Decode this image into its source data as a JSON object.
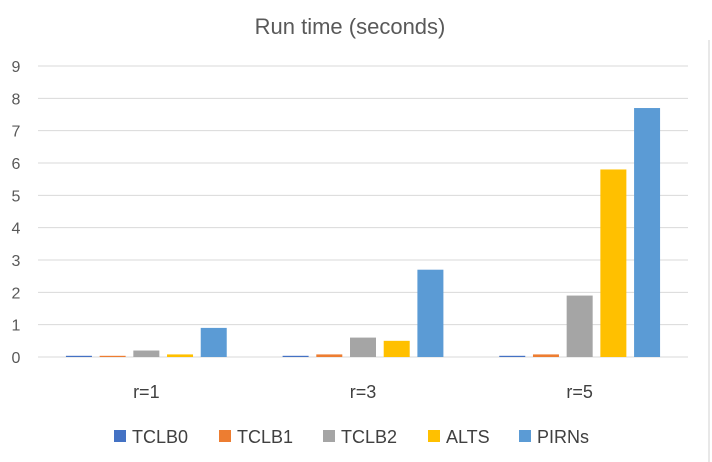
{
  "chart_data": {
    "type": "bar",
    "title": "Run time (seconds)",
    "xlabel": "",
    "ylabel": "",
    "categories": [
      "r=1",
      "r=3",
      "r=5"
    ],
    "ylim": [
      0,
      9
    ],
    "yticks": [
      "0",
      "1",
      "2",
      "3",
      "4",
      "5",
      "6",
      "7",
      "8",
      "9"
    ],
    "grid": true,
    "legend_position": "bottom",
    "series": [
      {
        "name": "TCLB0",
        "color": "#4472C4",
        "values": [
          0.03,
          0.03,
          0.03
        ]
      },
      {
        "name": "TCLB1",
        "color": "#ED7D31",
        "values": [
          0.03,
          0.08,
          0.08
        ]
      },
      {
        "name": "TCLB2",
        "color": "#A5A5A5",
        "values": [
          0.2,
          0.6,
          1.9
        ]
      },
      {
        "name": "ALTS",
        "color": "#FFC000",
        "values": [
          0.08,
          0.5,
          5.8
        ]
      },
      {
        "name": "PIRNs",
        "color": "#5B9BD5",
        "values": [
          0.9,
          2.7,
          7.7
        ]
      }
    ]
  }
}
